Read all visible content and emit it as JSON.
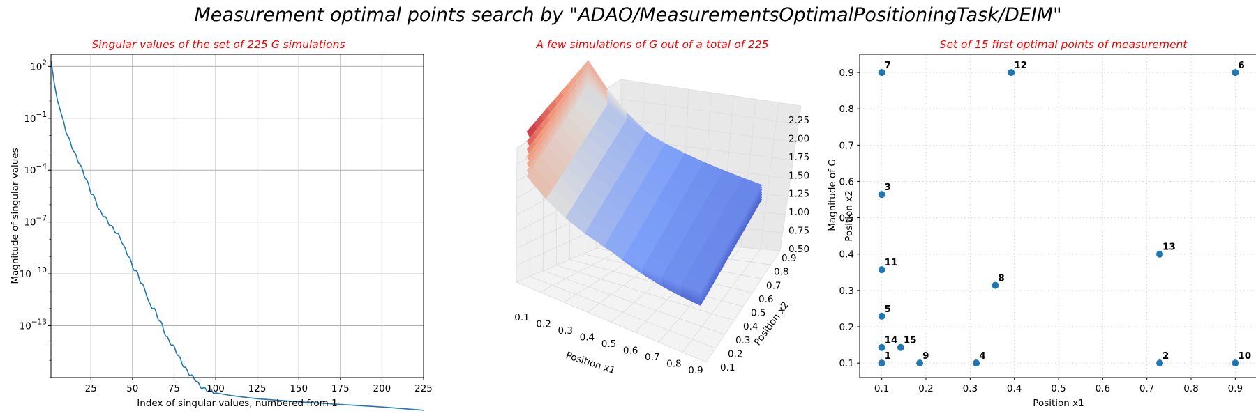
{
  "suptitle": "Measurement optimal points search by \"ADAO/MeasurementsOptimalPositioningTask/DEIM\"",
  "chart_data": [
    {
      "type": "line",
      "title": "Singular values of the set of 225 G simulations",
      "xlabel": "Index of singular values, numbered from 1",
      "ylabel": "Magnitude of singular values",
      "yscale": "log",
      "xlim": [
        1,
        225
      ],
      "ylim_log10": [
        -16,
        2.7
      ],
      "xticks": [
        25,
        50,
        75,
        100,
        125,
        150,
        175,
        200,
        225
      ],
      "yticks_exp": [
        2,
        -1,
        -4,
        -7,
        -10,
        -13
      ],
      "grid": true,
      "series_color": "#1f77b4",
      "x": [
        1,
        2,
        3,
        5,
        8,
        10,
        12,
        15,
        18,
        20,
        22,
        25,
        28,
        30,
        33,
        35,
        38,
        40,
        43,
        45,
        48,
        50,
        53,
        55,
        58,
        60,
        63,
        65,
        68,
        70,
        73,
        75,
        78,
        80,
        83,
        85,
        88,
        90,
        93,
        95,
        98,
        100,
        110,
        125,
        150,
        175,
        200,
        225
      ],
      "y": [
        200.0,
        50.0,
        10.0,
        1.0,
        0.1,
        0.02,
        0.005,
        0.001,
        0.0003,
        0.0001,
        3e-05,
        5e-06,
        2e-06,
        5e-07,
        2e-07,
        1e-07,
        5e-08,
        3e-08,
        1e-08,
        3e-09,
        1e-09,
        3e-10,
        1e-10,
        3e-11,
        1e-11,
        2e-12,
        1e-12,
        3e-13,
        1e-13,
        3e-14,
        1e-14,
        5e-15,
        1.5e-15,
        7e-16,
        2.5e-16,
        1.2e-16,
        7e-17,
        4e-17,
        2.5e-17,
        1.8e-17,
        1.5e-17,
        1.3e-17,
        9e-18,
        6e-18,
        4e-18,
        2.8e-18,
        2e-18,
        1.3e-18
      ]
    },
    {
      "type": "surface",
      "title": "A few simulations of G out of a total of 225",
      "xlabel": "Position x1",
      "ylabel": "Position x2",
      "zlabel": "Magnitude of G",
      "xticks": [
        0.1,
        0.2,
        0.3,
        0.4,
        0.5,
        0.6,
        0.7,
        0.8,
        0.9
      ],
      "yticks": [
        0.1,
        0.2,
        0.3,
        0.4,
        0.5,
        0.6,
        0.7,
        0.8,
        0.9
      ],
      "zticks": [
        0.5,
        0.75,
        1.0,
        1.25,
        1.5,
        1.75,
        2.0,
        2.25
      ],
      "zticks_text": [
        "0.50",
        "0.75",
        "1.00",
        "1.25",
        "1.50",
        "1.75",
        "2.00",
        "2.25"
      ],
      "colormap": "coolwarm"
    },
    {
      "type": "scatter",
      "title": "Set of 15 first optimal points of measurement",
      "xlabel": "Position x1",
      "ylabel": "Position x2",
      "xlim": [
        0.05,
        0.95
      ],
      "ylim": [
        0.06,
        0.95
      ],
      "xticks": [
        0.1,
        0.2,
        0.3,
        0.4,
        0.5,
        0.6,
        0.7,
        0.8,
        0.9
      ],
      "yticks": [
        0.1,
        0.2,
        0.3,
        0.4,
        0.5,
        0.6,
        0.7,
        0.8,
        0.9
      ],
      "grid": "dotted",
      "color": "#1f77b4",
      "points": [
        {
          "label": "1",
          "x": 0.1,
          "y": 0.1
        },
        {
          "label": "2",
          "x": 0.729,
          "y": 0.1
        },
        {
          "label": "3",
          "x": 0.1,
          "y": 0.564
        },
        {
          "label": "4",
          "x": 0.314,
          "y": 0.1
        },
        {
          "label": "5",
          "x": 0.1,
          "y": 0.229
        },
        {
          "label": "6",
          "x": 0.9,
          "y": 0.9
        },
        {
          "label": "7",
          "x": 0.1,
          "y": 0.9
        },
        {
          "label": "8",
          "x": 0.357,
          "y": 0.314
        },
        {
          "label": "9",
          "x": 0.186,
          "y": 0.1
        },
        {
          "label": "10",
          "x": 0.9,
          "y": 0.1
        },
        {
          "label": "11",
          "x": 0.1,
          "y": 0.357
        },
        {
          "label": "12",
          "x": 0.393,
          "y": 0.9
        },
        {
          "label": "13",
          "x": 0.729,
          "y": 0.4
        },
        {
          "label": "14",
          "x": 0.1,
          "y": 0.143
        },
        {
          "label": "15",
          "x": 0.143,
          "y": 0.143
        }
      ]
    }
  ]
}
